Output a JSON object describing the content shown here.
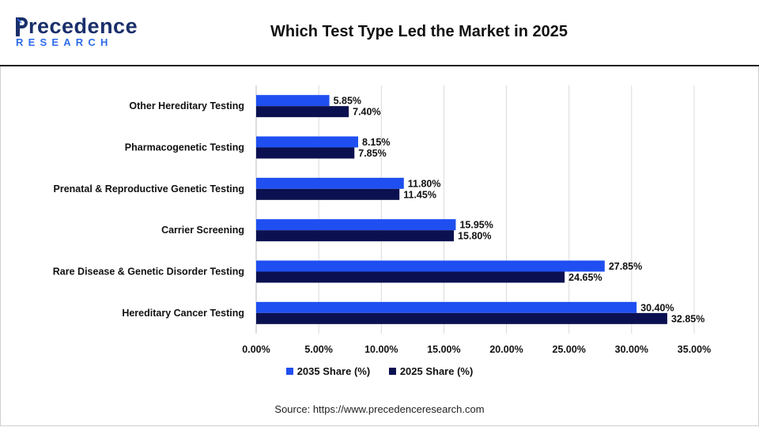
{
  "header": {
    "logo_word": "recedence",
    "logo_sub": "RESEARCH",
    "title": "Which Test Type Led the Market in 2025"
  },
  "colors": {
    "series_2035": "#1f4ff0",
    "series_2025": "#0b1150",
    "brand_dark": "#1a2f6b",
    "brand_blue": "#2d6bea"
  },
  "chart_data": {
    "type": "bar",
    "orientation": "horizontal",
    "categories": [
      "Other Hereditary Testing",
      "Pharmacogenetic Testing",
      "Prenatal & Reproductive Genetic Testing",
      "Carrier Screening",
      "Rare Disease & Genetic Disorder Testing",
      "Hereditary Cancer Testing"
    ],
    "series": [
      {
        "name": "2035 Share (%)",
        "values": [
          5.85,
          8.15,
          11.8,
          15.95,
          27.85,
          30.4
        ],
        "labels": [
          "5.85%",
          "8.15%",
          "11.80%",
          "15.95%",
          "27.85%",
          "30.40%"
        ]
      },
      {
        "name": "2025 Share (%)",
        "values": [
          7.4,
          7.85,
          11.45,
          15.8,
          24.65,
          32.85
        ],
        "labels": [
          "7.40%",
          "7.85%",
          "11.45%",
          "15.80%",
          "24.65%",
          "32.85%"
        ]
      }
    ],
    "xlim": [
      0,
      35
    ],
    "xticks": [
      0,
      5,
      10,
      15,
      20,
      25,
      30,
      35
    ],
    "xtick_labels": [
      "0.00%",
      "5.00%",
      "10.00%",
      "15.00%",
      "20.00%",
      "25.00%",
      "30.00%",
      "35.00%"
    ],
    "grid": true,
    "legend_position": "bottom"
  },
  "source": "Source: https://www.precedenceresearch.com"
}
